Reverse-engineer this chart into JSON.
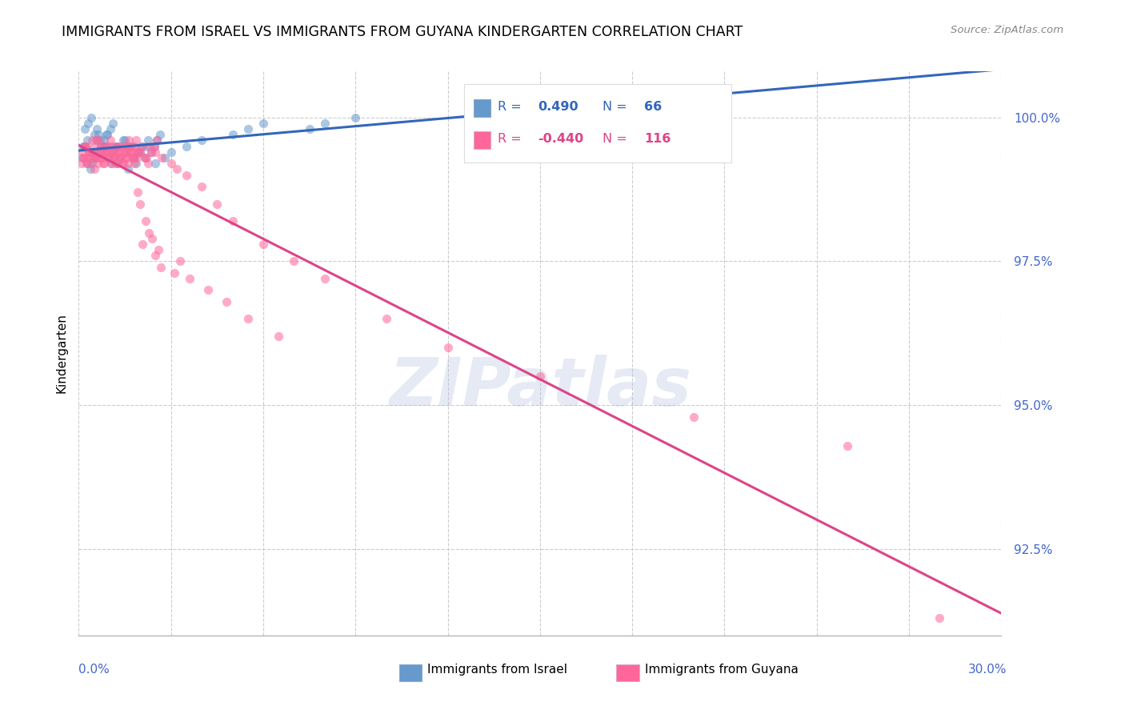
{
  "title": "IMMIGRANTS FROM ISRAEL VS IMMIGRANTS FROM GUYANA KINDERGARTEN CORRELATION CHART",
  "source": "Source: ZipAtlas.com",
  "ylabel": "Kindergarten",
  "yticks": [
    92.5,
    95.0,
    97.5,
    100.0
  ],
  "ytick_labels": [
    "92.5%",
    "95.0%",
    "97.5%",
    "100.0%"
  ],
  "xmin": 0.0,
  "xmax": 30.0,
  "ymin": 91.0,
  "ymax": 100.8,
  "israel_color": "#6699CC",
  "guyana_color": "#FF6699",
  "israel_line_color": "#3366BB",
  "guyana_line_color": "#DD4488",
  "israel_R": "0.490",
  "israel_N": "66",
  "guyana_R": "-0.440",
  "guyana_N": "116",
  "watermark": "ZIPatlas",
  "israel_scatter_x": [
    0.2,
    0.3,
    0.4,
    0.5,
    0.6,
    0.7,
    0.8,
    0.9,
    1.0,
    1.1,
    1.2,
    1.3,
    1.5,
    1.6,
    1.8,
    2.0,
    2.2,
    2.5,
    2.8,
    3.0,
    3.5,
    4.0,
    5.0,
    5.5,
    6.0,
    0.1,
    0.15,
    0.25,
    0.35,
    0.45,
    0.55,
    0.65,
    0.75,
    0.85,
    0.95,
    1.05,
    1.15,
    1.25,
    1.35,
    1.45,
    1.55,
    1.65,
    1.75,
    1.85,
    1.95,
    2.05,
    2.15,
    2.25,
    2.35,
    2.45,
    2.55,
    2.65,
    0.38,
    0.42,
    0.52,
    0.62,
    0.72,
    0.82,
    0.92,
    1.02,
    1.12,
    7.5,
    8.0,
    9.0,
    0.18,
    0.28
  ],
  "israel_scatter_y": [
    99.8,
    99.9,
    100.0,
    99.7,
    99.8,
    99.6,
    99.5,
    99.7,
    99.4,
    99.3,
    99.5,
    99.2,
    99.6,
    99.1,
    99.3,
    99.4,
    99.5,
    99.2,
    99.3,
    99.4,
    99.5,
    99.6,
    99.7,
    99.8,
    99.9,
    99.3,
    99.5,
    99.2,
    99.4,
    99.3,
    99.6,
    99.7,
    99.4,
    99.5,
    99.3,
    99.2,
    99.4,
    99.5,
    99.3,
    99.6,
    99.4,
    99.5,
    99.3,
    99.2,
    99.4,
    99.5,
    99.3,
    99.6,
    99.4,
    99.5,
    99.6,
    99.7,
    99.1,
    99.2,
    99.3,
    99.4,
    99.5,
    99.6,
    99.7,
    99.8,
    99.9,
    99.8,
    99.9,
    100.0,
    99.5,
    99.6
  ],
  "guyana_scatter_x": [
    0.1,
    0.2,
    0.3,
    0.4,
    0.5,
    0.6,
    0.7,
    0.8,
    0.9,
    1.0,
    1.1,
    1.2,
    1.3,
    1.4,
    1.5,
    1.6,
    1.7,
    1.8,
    1.9,
    2.0,
    2.2,
    2.3,
    2.5,
    2.7,
    3.0,
    3.2,
    3.5,
    4.0,
    4.5,
    5.0,
    6.0,
    7.0,
    8.0,
    10.0,
    12.0,
    15.0,
    20.0,
    25.0,
    0.15,
    0.25,
    0.35,
    0.45,
    0.55,
    0.65,
    0.75,
    0.85,
    0.95,
    1.05,
    1.15,
    1.25,
    1.35,
    1.45,
    1.55,
    1.65,
    1.75,
    1.85,
    1.95,
    2.05,
    2.15,
    2.25,
    2.35,
    2.45,
    2.55,
    0.12,
    0.18,
    0.22,
    0.28,
    0.32,
    0.38,
    0.42,
    0.48,
    0.52,
    0.58,
    0.62,
    0.68,
    0.72,
    0.78,
    0.82,
    0.88,
    0.92,
    0.98,
    1.02,
    1.08,
    1.12,
    1.18,
    1.22,
    1.28,
    1.32,
    1.38,
    1.42,
    1.48,
    1.52,
    1.58,
    1.62,
    1.68,
    1.72,
    1.78,
    1.82,
    1.88,
    1.92,
    1.98,
    2.08,
    2.18,
    2.28,
    2.38,
    2.48,
    2.58,
    2.68,
    3.1,
    3.3,
    3.6,
    4.2,
    4.8,
    5.5,
    6.5,
    28.0
  ],
  "guyana_scatter_y": [
    99.2,
    99.5,
    99.3,
    99.4,
    99.1,
    99.6,
    99.3,
    99.2,
    99.4,
    99.5,
    99.3,
    99.2,
    99.4,
    99.5,
    99.3,
    99.2,
    99.4,
    99.5,
    99.3,
    99.4,
    99.3,
    99.5,
    99.4,
    99.3,
    99.2,
    99.1,
    99.0,
    98.8,
    98.5,
    98.2,
    97.8,
    97.5,
    97.2,
    96.5,
    96.0,
    95.5,
    94.8,
    94.3,
    99.3,
    99.5,
    99.2,
    99.4,
    99.3,
    99.6,
    99.4,
    99.5,
    99.3,
    99.2,
    99.4,
    99.5,
    99.3,
    99.2,
    99.4,
    99.5,
    99.3,
    99.6,
    99.4,
    99.5,
    99.3,
    99.2,
    99.4,
    99.5,
    99.6,
    99.4,
    99.3,
    99.5,
    99.2,
    99.4,
    99.3,
    99.6,
    99.4,
    99.5,
    99.3,
    99.2,
    99.4,
    99.5,
    99.3,
    99.2,
    99.4,
    99.5,
    99.3,
    99.6,
    99.4,
    99.5,
    99.3,
    99.2,
    99.4,
    99.5,
    99.3,
    99.2,
    99.4,
    99.5,
    99.3,
    99.6,
    99.4,
    99.5,
    99.3,
    99.2,
    99.4,
    98.7,
    98.5,
    97.8,
    98.2,
    98.0,
    97.9,
    97.6,
    97.7,
    97.4,
    97.3,
    97.5,
    97.2,
    97.0,
    96.8,
    96.5,
    96.2,
    91.3
  ]
}
